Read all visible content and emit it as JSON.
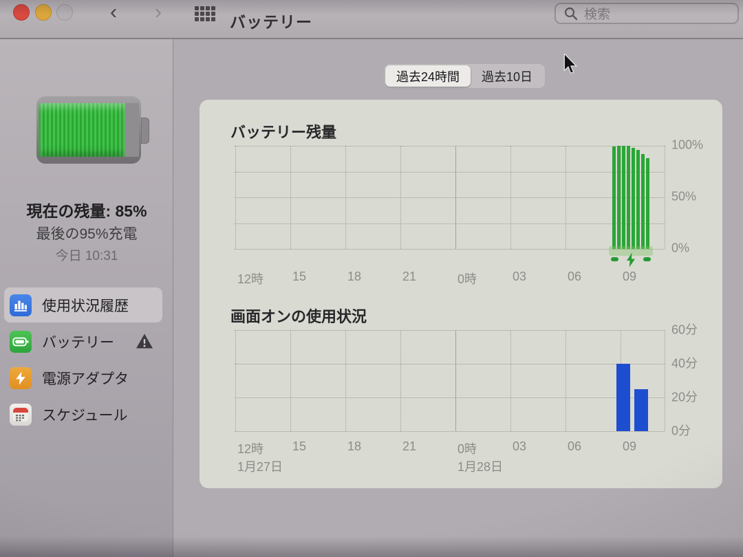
{
  "window": {
    "title": "バッテリー",
    "search_placeholder": "検索"
  },
  "sidebar": {
    "battery_summary": {
      "current_charge": "現在の残量: 85%",
      "last_charge": "最後の95%充電",
      "last_charge_time": "今日 10:31",
      "battery_fill_percent": 85
    },
    "items": [
      {
        "label": "使用状況履歴",
        "selected": true,
        "icon": "usage-history-icon"
      },
      {
        "label": "バッテリー",
        "selected": false,
        "icon": "battery-icon",
        "warning": true
      },
      {
        "label": "電源アダプタ",
        "selected": false,
        "icon": "power-adapter-icon"
      },
      {
        "label": "スケジュール",
        "selected": false,
        "icon": "schedule-icon"
      }
    ]
  },
  "tabs": [
    {
      "label": "過去24時間",
      "selected": true
    },
    {
      "label": "過去10日",
      "selected": false
    }
  ],
  "chart_data": [
    {
      "type": "bar",
      "title": "バッテリー残量",
      "x_ticks": [
        "12時",
        "15",
        "18",
        "21",
        "0時",
        "03",
        "06",
        "09"
      ],
      "y_tick_labels": [
        "100%",
        "50%",
        "0%"
      ],
      "ylim": [
        0,
        100
      ],
      "unit": "%",
      "grid": true,
      "legend": "none",
      "series": [
        {
          "name": "バッテリー残量",
          "values": [
            99,
            100,
            100,
            100,
            98,
            96,
            92,
            88
          ],
          "time_span": "約08時〜09時台のみデータあり",
          "color": "#2aa636"
        }
      ],
      "charging_indicator": true
    },
    {
      "type": "bar",
      "title": "画面オンの使用状況",
      "x_ticks": [
        "12時",
        "15",
        "18",
        "21",
        "0時",
        "03",
        "06",
        "09"
      ],
      "x_date_labels": [
        {
          "label": "1月27日",
          "at_tick": "12時"
        },
        {
          "label": "1月28日",
          "at_tick": "0時"
        }
      ],
      "y_tick_labels": [
        "60分",
        "40分",
        "20分",
        "0分"
      ],
      "ylim": [
        0,
        60
      ],
      "unit": "分",
      "grid": true,
      "legend": "none",
      "series": [
        {
          "name": "画面オンの使用状況",
          "values": [
            40,
            25
          ],
          "time_span": "約08時〜09時台のみデータあり",
          "color": "#1e4ed0"
        }
      ]
    }
  ],
  "colors": {
    "battery_green": "#2aa636",
    "usage_blue": "#1e4ed0",
    "icon_blue": "#3a76dd",
    "icon_green": "#3bb348",
    "icon_orange": "#e89a2e",
    "calendar_red": "#d9473c",
    "panel_bg": "#d9dad2",
    "selected_tab_bg": "#edebe8"
  }
}
